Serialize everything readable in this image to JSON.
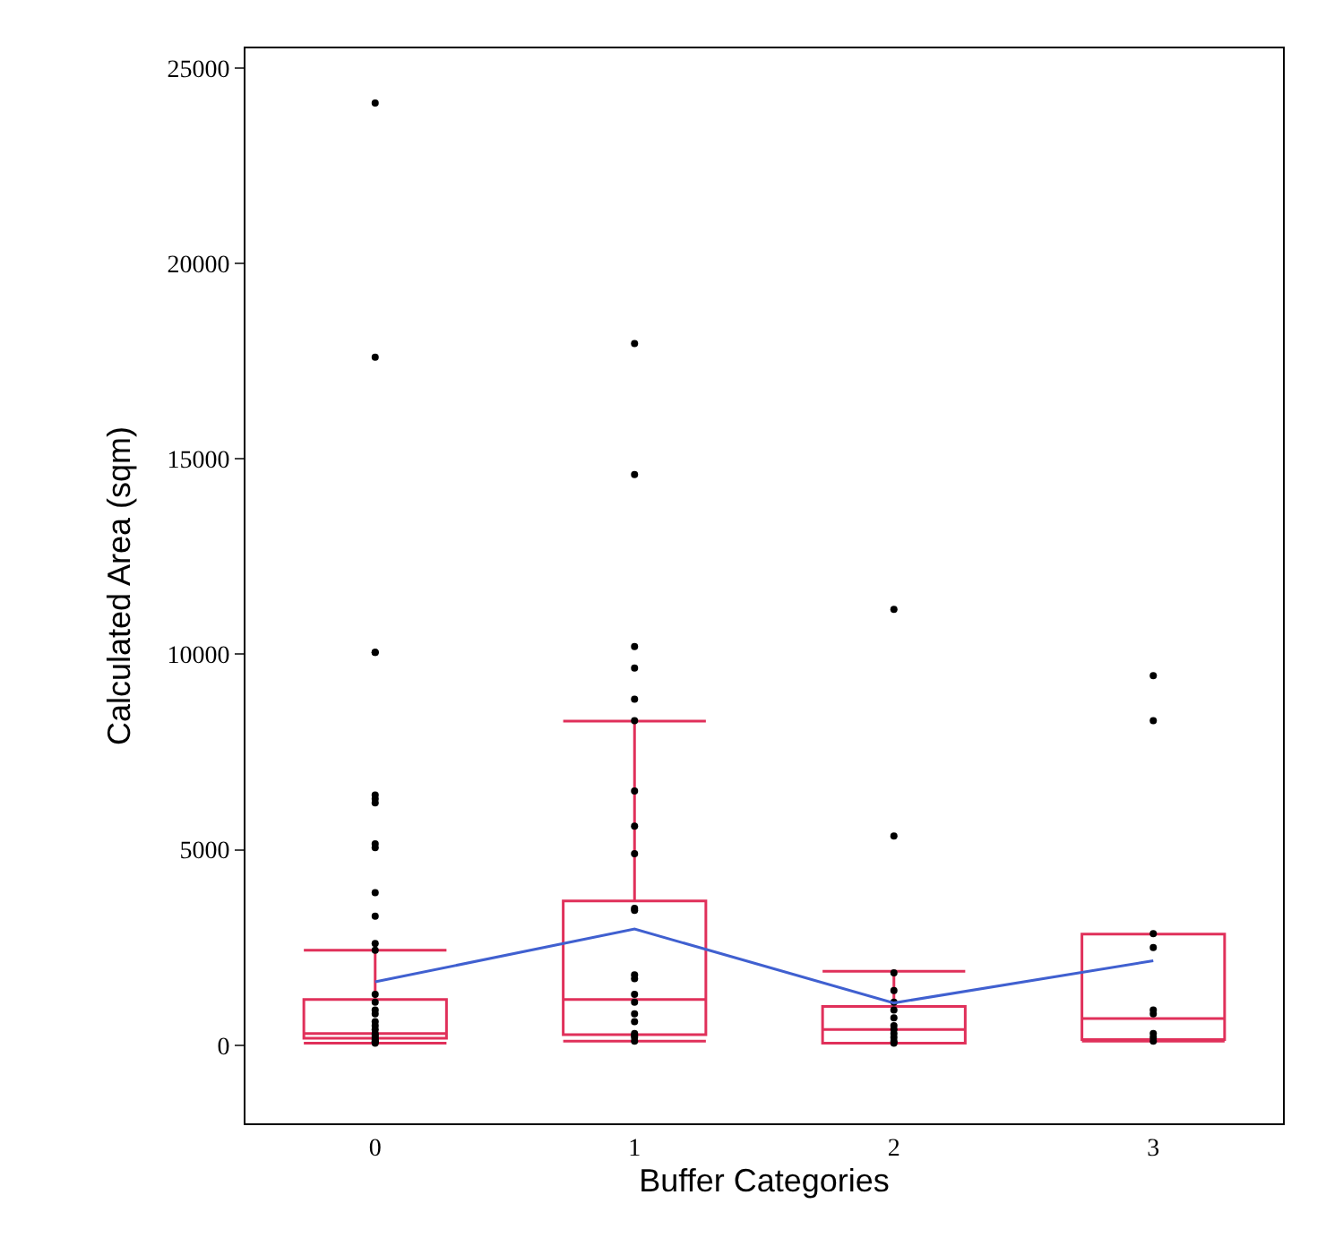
{
  "chart_data": {
    "type": "box",
    "xlabel": "Buffer Categories",
    "ylabel": "Calculated Area (sqm)",
    "categories": [
      "0",
      "1",
      "2",
      "3"
    ],
    "boxes": [
      {
        "low": 50,
        "q1": 180,
        "median": 300,
        "q3": 1170,
        "high": 2430
      },
      {
        "low": 100,
        "q1": 270,
        "median": 1170,
        "q3": 3690,
        "high": 8290
      },
      {
        "low": 50,
        "q1": 50,
        "median": 400,
        "q3": 990,
        "high": 1890
      },
      {
        "low": 100,
        "q1": 140,
        "median": 680,
        "q3": 2840,
        "high": 2840
      }
    ],
    "color": "#e0305a",
    "series": [
      {
        "type": "scatter",
        "color": "#000000",
        "marker": "circle",
        "x": [
          "0",
          "0",
          "0",
          "0",
          "0",
          "0",
          "0",
          "0",
          "0",
          "0",
          "0",
          "0",
          "0",
          "0",
          "0",
          "0",
          "0",
          "0",
          "0",
          "0",
          "0",
          "0",
          "0",
          "0",
          "0",
          "0",
          "0",
          "1",
          "1",
          "1",
          "1",
          "1",
          "1",
          "1",
          "1",
          "1",
          "1",
          "1",
          "1",
          "1",
          "1",
          "1",
          "1",
          "1",
          "1",
          "1",
          "1",
          "1",
          "2",
          "2",
          "2",
          "2",
          "2",
          "2",
          "2",
          "2",
          "2",
          "2",
          "2",
          "2",
          "2",
          "3",
          "3",
          "3",
          "3",
          "3",
          "3",
          "3",
          "3",
          "3"
        ],
        "values": [
          24100,
          17600,
          10050,
          10050,
          6400,
          6300,
          6200,
          5150,
          5050,
          3900,
          3300,
          2600,
          2430,
          1300,
          1100,
          900,
          800,
          600,
          500,
          400,
          300,
          250,
          200,
          150,
          100,
          80,
          50,
          17950,
          14600,
          10200,
          9650,
          8850,
          8300,
          6500,
          5600,
          4900,
          3500,
          3450,
          1800,
          1700,
          1300,
          1100,
          800,
          600,
          300,
          250,
          200,
          100,
          11150,
          5350,
          1850,
          1400,
          1100,
          900,
          700,
          500,
          400,
          300,
          200,
          100,
          50,
          9450,
          8300,
          2850,
          2500,
          900,
          800,
          300,
          200,
          100
        ]
      },
      {
        "type": "line",
        "color": "#4060d0",
        "marker": "none",
        "x": [
          "0",
          "1",
          "2",
          "3"
        ],
        "values": [
          1620,
          2970,
          1080,
          2160
        ]
      }
    ],
    "ylim": [
      -2000,
      25500
    ],
    "yticks": [
      0,
      5000,
      10000,
      15000,
      20000,
      25000
    ]
  }
}
